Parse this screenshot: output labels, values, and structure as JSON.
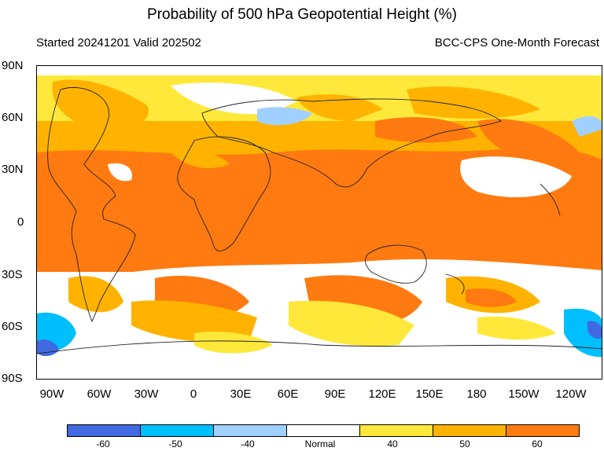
{
  "title": "Probability of 500 hPa Geopotential Height (%)",
  "subtitle_left": "Started 20241201  Valid 202502",
  "subtitle_right": "BCC-CPS One-Month Forecast",
  "lat_labels": [
    "90N",
    "60N",
    "30N",
    "0",
    "30S",
    "60S",
    "90S"
  ],
  "lon_labels": [
    "90W",
    "60W",
    "30W",
    "0",
    "30E",
    "60E",
    "90E",
    "120E",
    "150E",
    "180",
    "150W",
    "120W"
  ],
  "legend": {
    "colors": [
      "#4169e1",
      "#00bfff",
      "#a0d0ff",
      "#ffffff",
      "#ffe83a",
      "#ffb300",
      "#ff7a10"
    ],
    "labels": [
      "-60",
      "-50",
      "-40",
      "Normal",
      "40",
      "50",
      "60"
    ]
  }
}
